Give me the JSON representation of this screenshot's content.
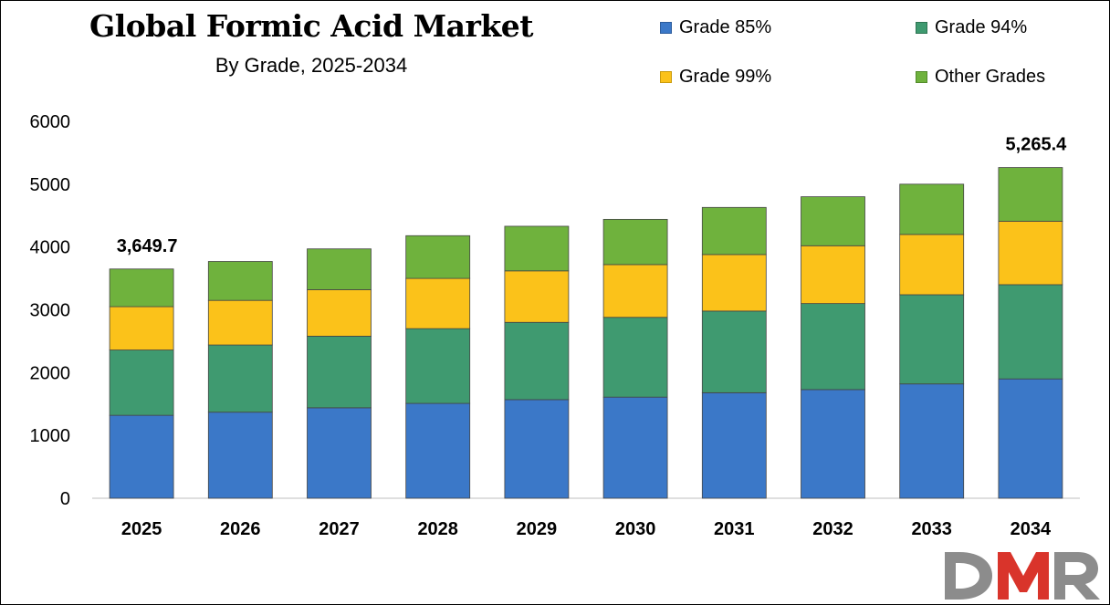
{
  "chart_data": {
    "type": "bar",
    "stacked": true,
    "title": "Global Formic Acid Market",
    "subtitle": "By Grade, 2025-2034",
    "categories": [
      "2025",
      "2026",
      "2027",
      "2028",
      "2029",
      "2030",
      "2031",
      "2032",
      "2033",
      "2034"
    ],
    "series": [
      {
        "name": "Grade 85%",
        "color": "#3b78c8",
        "values": [
          1320,
          1370,
          1440,
          1510,
          1570,
          1610,
          1680,
          1730,
          1820,
          1900
        ]
      },
      {
        "name": "Grade 94%",
        "color": "#3f9a70",
        "values": [
          1040,
          1070,
          1140,
          1190,
          1230,
          1270,
          1300,
          1370,
          1420,
          1500
        ]
      },
      {
        "name": "Grade 99%",
        "color": "#fbc21a",
        "values": [
          690,
          710,
          740,
          800,
          820,
          840,
          900,
          920,
          960,
          1010
        ]
      },
      {
        "name": "Other Grades",
        "color": "#6fb23d",
        "values": [
          599.7,
          620,
          650,
          680,
          710,
          720,
          750,
          780,
          800,
          855.4
        ]
      }
    ],
    "yticks": [
      "0",
      "1000",
      "2000",
      "3000",
      "4000",
      "5000",
      "6000"
    ],
    "ylim": [
      0,
      6000
    ],
    "annotations": [
      {
        "category": "2025",
        "text": "3,649.7"
      },
      {
        "category": "2034",
        "text": "5,265.4"
      }
    ],
    "grid": false,
    "legend_position": "top-right"
  },
  "logo": {
    "text": "DMR"
  }
}
